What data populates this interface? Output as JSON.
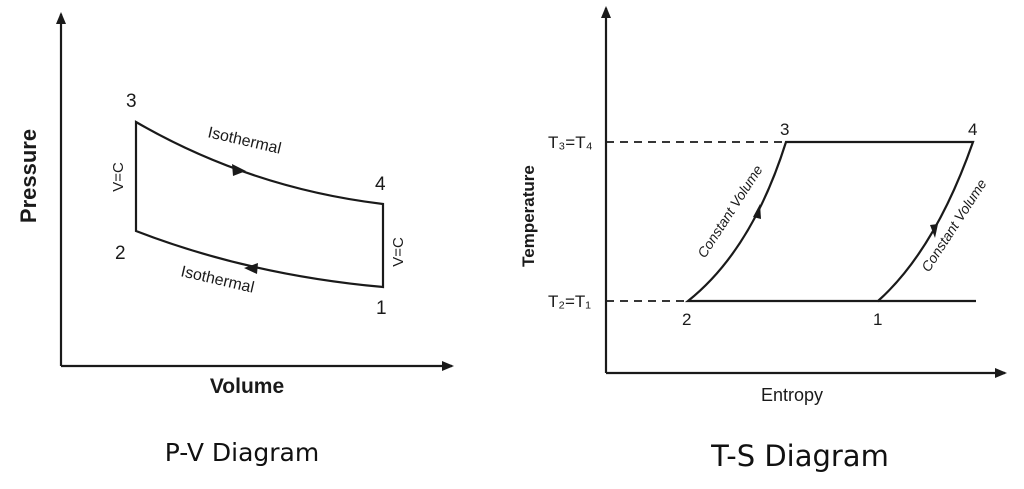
{
  "pv": {
    "caption": "P-V Diagram",
    "x_label": "Volume",
    "y_label": "Pressure",
    "points": {
      "p1": "1",
      "p2": "2",
      "p3": "3",
      "p4": "4"
    },
    "process_top": "Isothermal",
    "process_bottom": "Isothermal",
    "process_left": "V=C",
    "process_right": "V=C"
  },
  "ts": {
    "caption": "T-S Diagram",
    "x_label": "Entropy",
    "y_label": "Temperature",
    "points": {
      "p1": "1",
      "p2": "2",
      "p3": "3",
      "p4": "4"
    },
    "level_high": "T₃=T₄",
    "level_low": "T₂=T₁",
    "process_left": "Constant Volume",
    "process_right": "Constant Volume"
  },
  "colors": {
    "cycle_fill": "#bcbcbc",
    "line": "#1a1a1a",
    "background": "#ffffff"
  }
}
